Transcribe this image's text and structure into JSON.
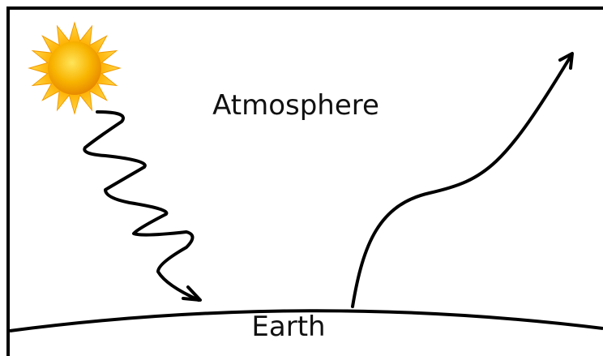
{
  "labels": {
    "atmosphere": "Atmosphere",
    "earth": "Earth"
  }
}
